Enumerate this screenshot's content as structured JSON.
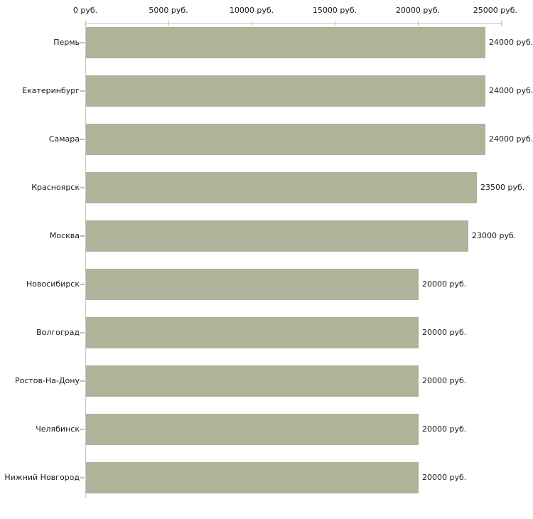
{
  "chart_data": {
    "type": "bar",
    "orientation": "horizontal",
    "title": "",
    "categories": [
      "Пермь",
      "Екатеринбург",
      "Самара",
      "Красноярск",
      "Москва",
      "Новосибирск",
      "Волгоград",
      "Ростов-На-Дону",
      "Челябинск",
      "Нижний Новгород"
    ],
    "values": [
      24000,
      24000,
      24000,
      23500,
      23000,
      20000,
      20000,
      20000,
      20000,
      20000
    ],
    "value_labels": [
      "24000 руб.",
      "24000 руб.",
      "24000 руб.",
      "23500 руб.",
      "23000 руб.",
      "20000 руб.",
      "20000 руб.",
      "20000 руб.",
      "20000 руб.",
      "20000 руб."
    ],
    "x_axis": {
      "position": "top",
      "tick_values": [
        0,
        5000,
        10000,
        15000,
        20000,
        25000
      ],
      "tick_labels": [
        "0 руб.",
        "5000 руб.",
        "10000 руб.",
        "15000 руб.",
        "20000 руб.",
        "25000 руб."
      ],
      "xlim": [
        0,
        25000
      ]
    },
    "xlabel": "",
    "ylabel": "",
    "grid": false,
    "legend": false,
    "colors": {
      "bar": "#adb49a",
      "axis_line": "#c6c6c6",
      "tick_mark": "#c2bd9c",
      "text": "#1a1a1a",
      "background": "#ffffff"
    }
  }
}
